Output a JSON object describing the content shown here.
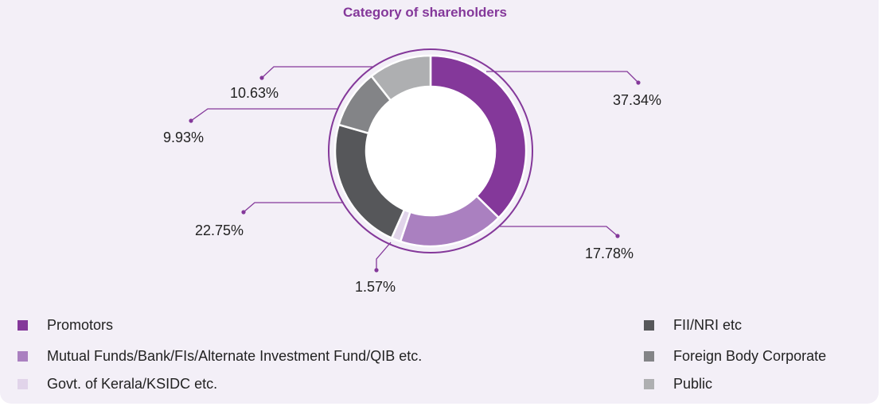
{
  "chart_data": {
    "type": "pie",
    "style": "donut",
    "title": "Category of shareholders",
    "series": [
      {
        "name": "Promotors",
        "value": 37.34,
        "label": "37.34%",
        "color": "#84389a"
      },
      {
        "name": "Mutual Funds/Bank/FIs/Alternate Investment Fund/QIB etc.",
        "value": 17.78,
        "label": "17.78%",
        "color": "#aa80c0"
      },
      {
        "name": "Govt. of Kerala/KSIDC etc.",
        "value": 1.57,
        "label": "1.57%",
        "color": "#e1d4ea"
      },
      {
        "name": "FII/NRI etc",
        "value": 22.75,
        "label": "22.75%",
        "color": "#56575a"
      },
      {
        "name": "Foreign Body Corporate",
        "value": 9.93,
        "label": "9.93%",
        "color": "#838487"
      },
      {
        "name": "Public",
        "value": 10.63,
        "label": "10.63%",
        "color": "#aeafb1"
      }
    ],
    "legend_position": "bottom",
    "accent_color": "#84389a"
  }
}
